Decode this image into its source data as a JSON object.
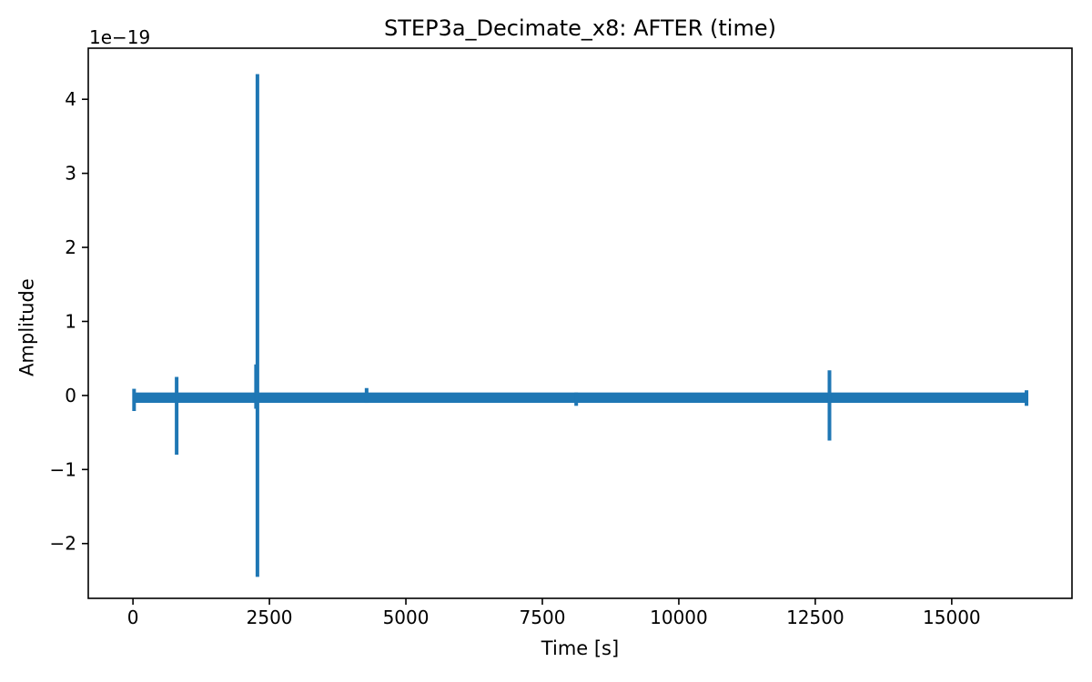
{
  "chart_data": {
    "type": "line",
    "title": "STEP3a_Decimate_x8: AFTER (time)",
    "xlabel": "Time [s]",
    "ylabel": "Amplitude",
    "y_offset_text": "1e−19",
    "y_unit_scale": "1e-19",
    "line_color": "#1f77b4",
    "axis_color": "#000000",
    "background_color": "#ffffff",
    "grid": false,
    "legend": false,
    "xlim": [
      -819,
      17203
    ],
    "ylim": [
      -2.74,
      4.69
    ],
    "xticks": [
      0,
      2500,
      5000,
      7500,
      10000,
      12500,
      15000
    ],
    "yticks": [
      -2,
      -1,
      0,
      1,
      2,
      3,
      4
    ],
    "baseline_band": {
      "comment": "dense near-zero waveform rendered as a thick horizontal band, values in units of 1e-19",
      "x_start": 0,
      "x_end": 16384,
      "y_top": 0.04,
      "y_bottom": -0.1
    },
    "spikes": [
      {
        "t": 20,
        "up": 0.09,
        "down": -0.21
      },
      {
        "t": 800,
        "up": 0.25,
        "down": -0.8
      },
      {
        "t": 2255,
        "up": 0.42,
        "down": -0.18
      },
      {
        "t": 2280,
        "up": 4.34,
        "down": -2.45
      },
      {
        "t": 4280,
        "up": 0.1,
        "down": -0.1
      },
      {
        "t": 8120,
        "up": 0.04,
        "down": -0.14
      },
      {
        "t": 12760,
        "up": 0.34,
        "down": -0.61
      },
      {
        "t": 16370,
        "up": 0.07,
        "down": -0.14
      }
    ]
  }
}
